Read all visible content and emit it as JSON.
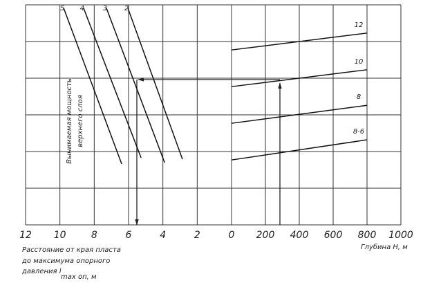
{
  "chart_data": [
    {
      "type": "line",
      "xlabel_lines": [
        "Расстояние от края пласта",
        "до максимума опорного",
        "давления l"
      ],
      "xlabel_subscript": "max оп, м",
      "annotation": [
        "Вынимаемая мощность",
        "верхнего слоя"
      ],
      "xlim": [
        12,
        0
      ],
      "xticks": [
        12,
        10,
        8,
        6,
        4,
        2
      ],
      "ylim": [
        0,
        6
      ],
      "yticks": [
        0,
        1,
        2,
        3,
        4,
        5,
        6
      ],
      "grid": true,
      "series": [
        {
          "name": "5",
          "color": "#111111",
          "x": [
            9.78,
            6.4
          ],
          "values": [
            5.91,
            1.66
          ]
        },
        {
          "name": "4",
          "color": "#111111",
          "x": [
            8.62,
            5.27
          ],
          "values": [
            5.91,
            1.83
          ]
        },
        {
          "name": "3",
          "color": "#111111",
          "x": [
            7.29,
            3.9
          ],
          "values": [
            5.91,
            1.7
          ]
        },
        {
          "name": "2",
          "color": "#111111",
          "x": [
            6.04,
            2.86
          ],
          "values": [
            5.91,
            1.79
          ]
        }
      ]
    },
    {
      "type": "line",
      "xlabel": "Глубина H, м",
      "xlim": [
        0,
        1000
      ],
      "xticks": [
        0,
        200,
        400,
        600,
        800,
        1000
      ],
      "ylim": [
        0,
        6
      ],
      "yticks": [
        0,
        1,
        2,
        3,
        4,
        5,
        6
      ],
      "grid": true,
      "series": [
        {
          "name": "12",
          "color": "#111111",
          "x": [
            0,
            800
          ],
          "values": [
            4.77,
            5.23
          ]
        },
        {
          "name": "10",
          "color": "#111111",
          "x": [
            0,
            800
          ],
          "values": [
            3.77,
            4.23
          ]
        },
        {
          "name": "8",
          "color": "#111111",
          "x": [
            0,
            800
          ],
          "values": [
            2.77,
            3.26
          ]
        },
        {
          "name": "8-6",
          "color": "#111111",
          "x": [
            0,
            800
          ],
          "values": [
            1.77,
            2.32
          ]
        }
      ]
    }
  ]
}
